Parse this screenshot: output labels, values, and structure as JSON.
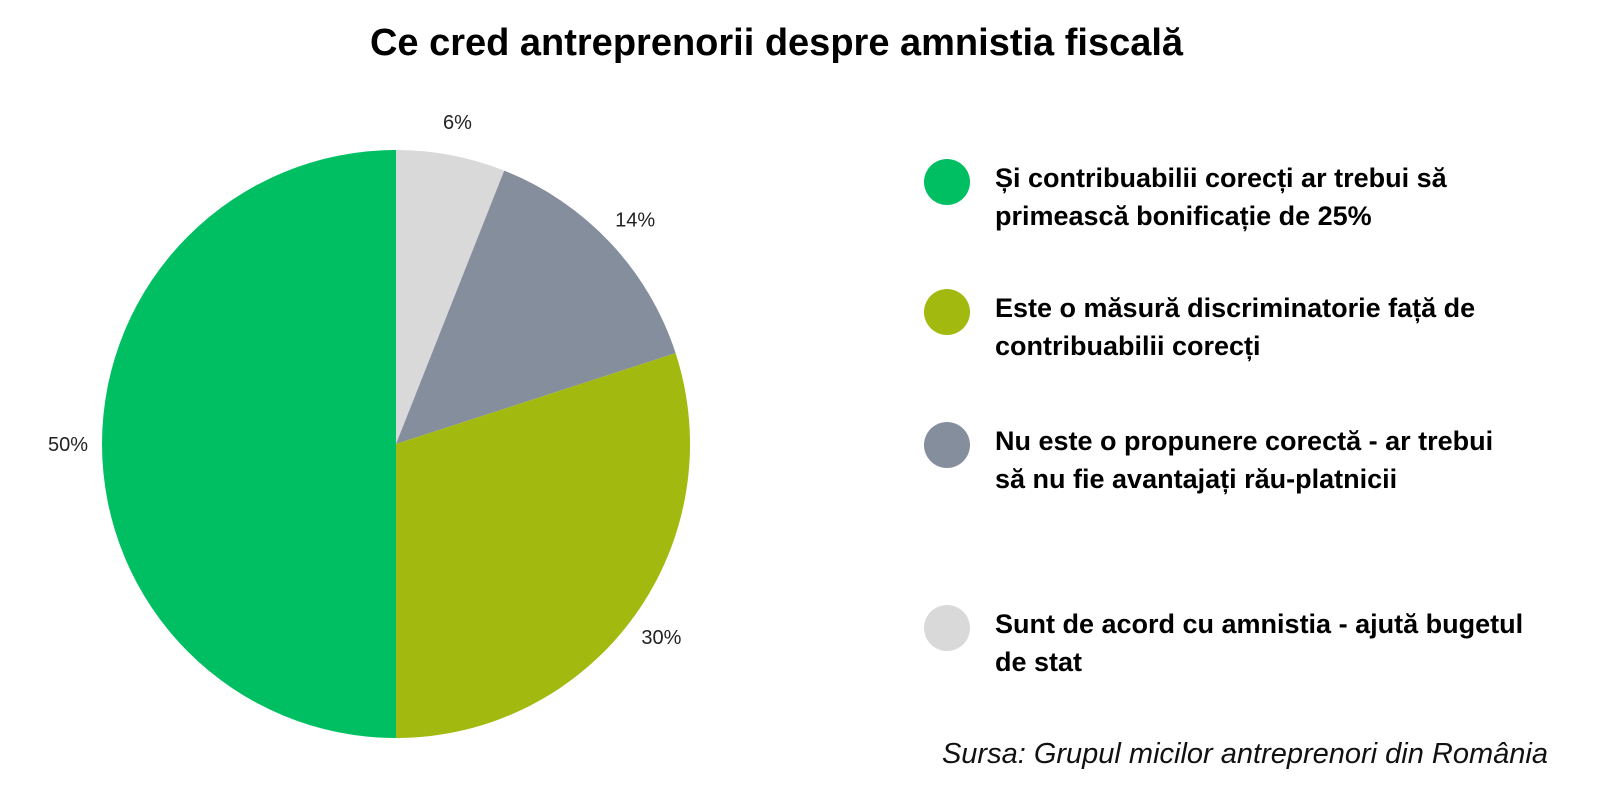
{
  "chart_data": {
    "type": "pie",
    "title": "Ce cred antreprenorii despre amnistia fiscală",
    "start": "top",
    "direction": "clockwise",
    "slices": [
      {
        "label": "Sunt de acord cu amnistia - ajută bugetul de stat",
        "value": 6,
        "data_label": "6%",
        "color": "#D9D9D9"
      },
      {
        "label": "Nu este o propunere corectă - ar trebui să nu fie avantajați rău-platnicii",
        "value": 14,
        "data_label": "14%",
        "color": "#858E9C"
      },
      {
        "label": "Este o măsură discriminatorie față de contribuabilii corecți",
        "value": 30,
        "data_label": "30%",
        "color": "#A2B910"
      },
      {
        "label": "Și contribuabilii corecți ar trebui să primească bonificație de 25%",
        "value": 50,
        "data_label": "50%",
        "color": "#00BF63"
      }
    ],
    "legend": {
      "placement": "right",
      "order": [
        3,
        2,
        1,
        0
      ]
    },
    "source": "Sursa: Grupul micilor antreprenori din România"
  }
}
